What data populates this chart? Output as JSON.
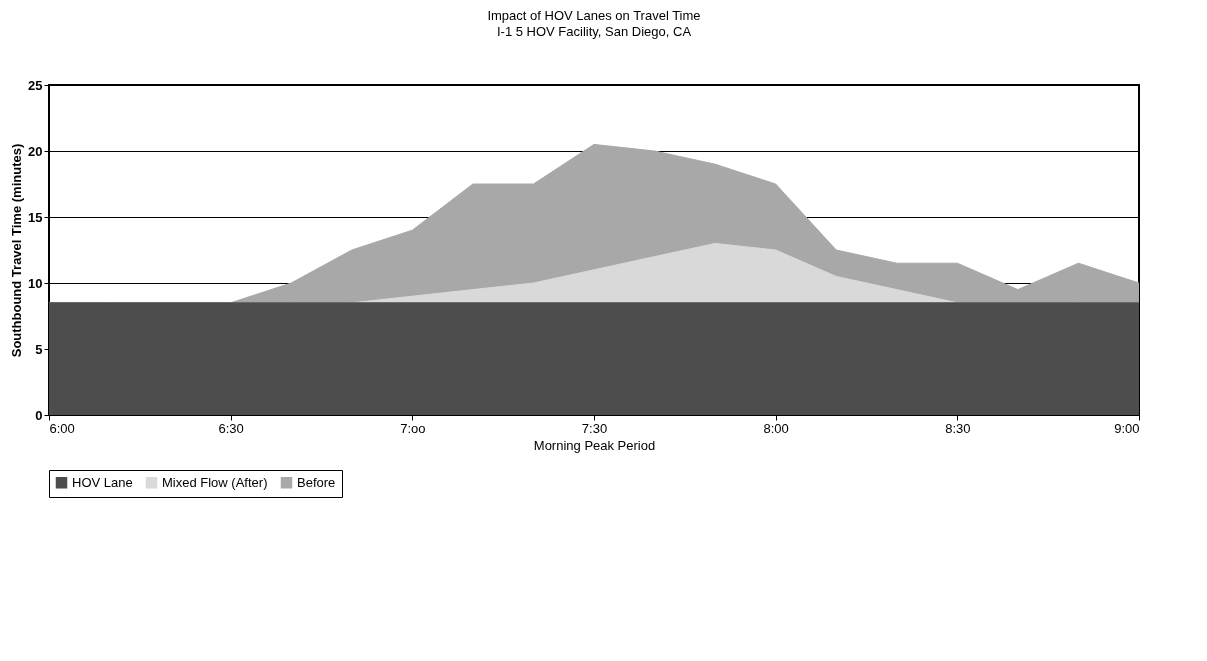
{
  "chart_data": {
    "type": "area",
    "title": "Impact of HOV Lanes on Travel Time",
    "subtitle": "I-1 5 HOV Facility, San Diego, CA",
    "xlabel": "Morning Peak Period",
    "ylabel": "Southbound Travel Time (minutes)",
    "x": [
      6.0,
      6.1667,
      6.3333,
      6.5,
      6.6667,
      6.8333,
      7.0,
      7.1667,
      7.3333,
      7.5,
      7.6667,
      7.8333,
      8.0,
      8.1667,
      8.3333,
      8.5,
      8.6667,
      8.8333,
      9.0
    ],
    "series": [
      {
        "name": "Before",
        "color": "#a8a8a8",
        "values": [
          8.5,
          8.5,
          8.5,
          8.5,
          10,
          12.5,
          14,
          17.5,
          17.5,
          20.5,
          20,
          19,
          17.5,
          12.5,
          11.5,
          11.5,
          9.5,
          11.5,
          10
        ]
      },
      {
        "name": "Mixed Flow (After)",
        "color": "#d9d9d9",
        "values": [
          8.5,
          8.5,
          8.5,
          8.5,
          8.5,
          8.5,
          9,
          9.5,
          10,
          11,
          12,
          13,
          12.5,
          10.5,
          9.5,
          8.5,
          8.5,
          8.5,
          8.5
        ]
      },
      {
        "name": "HOV Lane",
        "color": "#4d4d4d",
        "values": [
          8.5,
          8.5,
          8.5,
          8.5,
          8.5,
          8.5,
          8.5,
          8.5,
          8.5,
          8.5,
          8.5,
          8.5,
          8.5,
          8.5,
          8.5,
          8.5,
          8.5,
          8.5,
          8.5
        ]
      }
    ],
    "xlim": [
      6,
      9
    ],
    "xticks": [
      {
        "value": 6,
        "label": "6:00"
      },
      {
        "value": 6.5,
        "label": "6:30"
      },
      {
        "value": 7,
        "label": "7:oo"
      },
      {
        "value": 7.5,
        "label": "7:30"
      },
      {
        "value": 8,
        "label": "8:00"
      },
      {
        "value": 8.5,
        "label": "8:30"
      },
      {
        "value": 9,
        "label": "9:00"
      }
    ],
    "ylim": [
      0,
      25
    ],
    "yticks": [
      0,
      5,
      10,
      15,
      20,
      25
    ],
    "grid": "y",
    "legend": "bottom"
  }
}
